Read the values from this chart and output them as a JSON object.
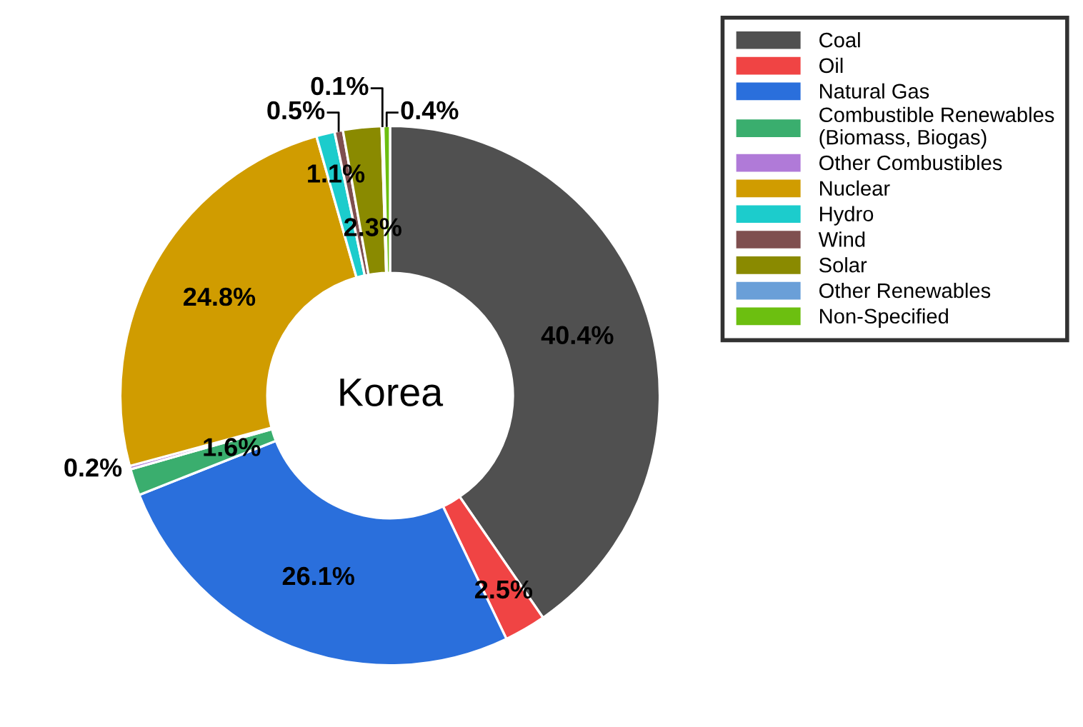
{
  "chart_data": {
    "type": "donut",
    "title": "Korea",
    "categories": [
      "Coal",
      "Oil",
      "Natural Gas",
      "Combustible Renewables\n(Biomass, Biogas)",
      "Other Combustibles",
      "Nuclear",
      "Hydro",
      "Wind",
      "Solar",
      "Other Renewables",
      "Non-Specified"
    ],
    "values": [
      40.4,
      2.5,
      26.1,
      1.6,
      0.2,
      24.8,
      1.1,
      0.5,
      2.3,
      0.1,
      0.4
    ],
    "value_labels": [
      "40.4%",
      "2.5%",
      "26.1%",
      "1.6%",
      "0.2%",
      "24.8%",
      "1.1%",
      "0.5%",
      "2.3%",
      "0.1%",
      "0.4%"
    ],
    "colors": [
      "#505050",
      "#f04444",
      "#2a6fdc",
      "#3aae6e",
      "#b07ad8",
      "#d09c00",
      "#1ccccc",
      "#7f4f4f",
      "#8a8a00",
      "#6a9fd8",
      "#6cbf10"
    ],
    "legend": "top right"
  }
}
